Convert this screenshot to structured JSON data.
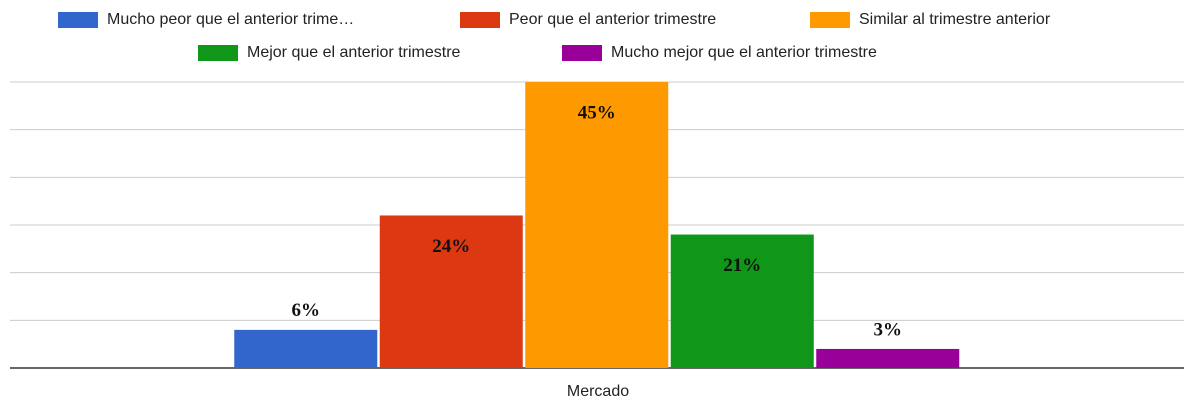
{
  "chart_data": {
    "type": "bar",
    "categories": [
      "Mercado"
    ],
    "series": [
      {
        "name": "Mucho peor que el anterior trime…",
        "color": "#3366cc",
        "values": [
          6
        ],
        "value_labels": [
          "6%"
        ]
      },
      {
        "name": "Peor que el anterior trimestre",
        "color": "#dc3912",
        "values": [
          24
        ],
        "value_labels": [
          "24%"
        ]
      },
      {
        "name": "Similar al trimestre anterior",
        "color": "#ff9900",
        "values": [
          45
        ],
        "value_labels": [
          "45%"
        ]
      },
      {
        "name": "Mejor que el anterior trimestre",
        "color": "#109618",
        "values": [
          21
        ],
        "value_labels": [
          "21%"
        ]
      },
      {
        "name": "Mucho mejor que el anterior trimestre",
        "color": "#990099",
        "values": [
          3
        ],
        "value_labels": [
          "3%"
        ]
      }
    ],
    "ylim": [
      0,
      45
    ],
    "yticks": [
      0,
      7.5,
      15,
      22.5,
      30,
      37.5,
      45
    ],
    "grid": true,
    "legend": "top"
  }
}
